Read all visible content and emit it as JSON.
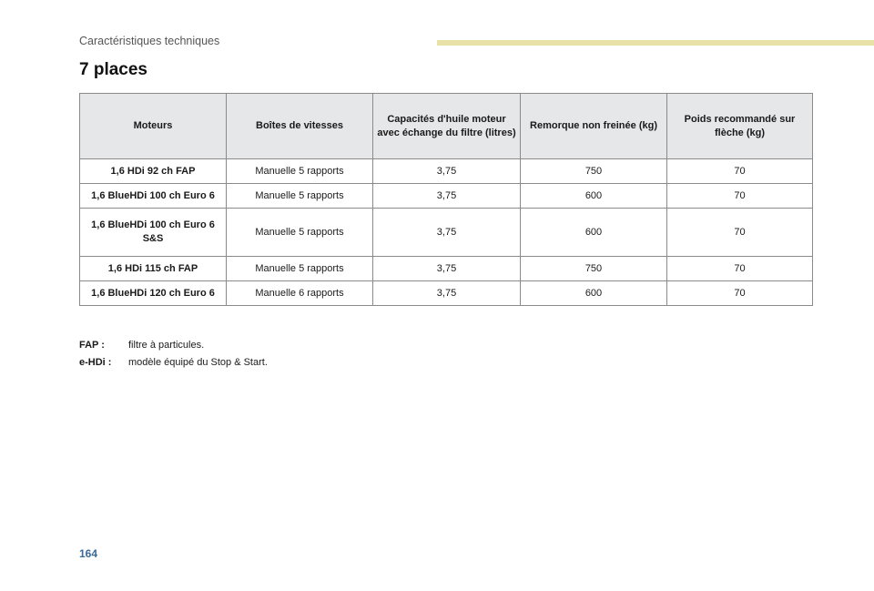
{
  "header": {
    "section": "Caractéristiques techniques"
  },
  "title": "7 places",
  "table": {
    "columns": [
      "Moteurs",
      "Boîtes de vitesses",
      "Capacités d'huile moteur avec échange du filtre (litres)",
      "Remorque non freinée (kg)",
      "Poids recommandé sur flèche (kg)"
    ],
    "rows": [
      [
        "1,6 HDi 92 ch FAP",
        "Manuelle 5 rapports",
        "3,75",
        "750",
        "70"
      ],
      [
        "1,6 BlueHDi 100 ch Euro 6",
        "Manuelle 5 rapports",
        "3,75",
        "600",
        "70"
      ],
      [
        "1,6 BlueHDi 100 ch Euro 6 S&S",
        "Manuelle 5 rapports",
        "3,75",
        "600",
        "70"
      ],
      [
        "1,6 HDi 115 ch FAP",
        "Manuelle 5 rapports",
        "3,75",
        "750",
        "70"
      ],
      [
        "1,6 BlueHDi 120 ch Euro 6",
        "Manuelle 6 rapports",
        "3,75",
        "600",
        "70"
      ]
    ]
  },
  "notes": [
    {
      "term": "FAP :",
      "definition": "filtre à particules."
    },
    {
      "term": "e-HDi :",
      "definition": "modèle équipé du Stop & Start."
    }
  ],
  "page_number": "164",
  "colors": {
    "header_bar": "#e8e2a8",
    "table_header_bg": "#e6e7e9",
    "page_number": "#3d6a97"
  }
}
